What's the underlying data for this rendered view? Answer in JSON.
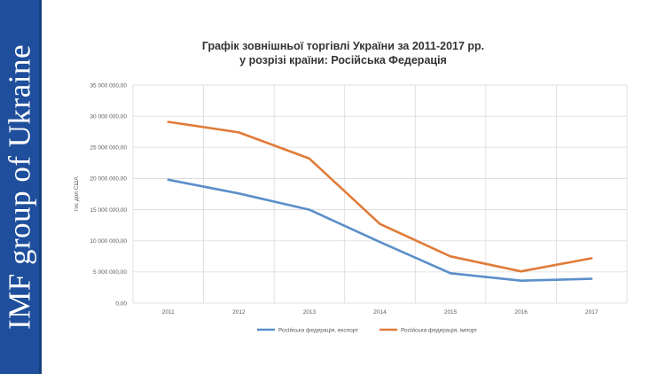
{
  "brand": {
    "text": "IMF group of Ukraine"
  },
  "colors": {
    "brand_bar": "#1f4f9c",
    "export_series": "#5b8fc9",
    "import_series": "#e07b39",
    "grid": "#d9d9d9"
  },
  "chart_data": {
    "type": "line",
    "title_lines": [
      "Графік зовнішньої торгівлі України за 2011-2017 рр.",
      "у розрізі країни: Російська Федерація"
    ],
    "xlabel": "",
    "ylabel": "тис дол США",
    "x": [
      "2011",
      "2012",
      "2013",
      "2014",
      "2015",
      "2016",
      "2017"
    ],
    "ylim": [
      0,
      35000000
    ],
    "yticks": [
      0,
      5000000,
      10000000,
      15000000,
      20000000,
      25000000,
      30000000,
      35000000
    ],
    "ytick_labels": [
      "0,00",
      "5 000 000,00",
      "10 000 000,00",
      "15 000 000,00",
      "20 000 000,00",
      "25 000 000,00",
      "30 000 000,00",
      "35 000 000,00"
    ],
    "grid": true,
    "legend_position": "bottom",
    "series": [
      {
        "name": "Російська федерація, експорт",
        "color": "#5b8fc9",
        "values": [
          19800000,
          17600000,
          15000000,
          9800000,
          4800000,
          3600000,
          3900000
        ]
      },
      {
        "name": "Російська федерація, імпорт",
        "color": "#e07b39",
        "values": [
          29100000,
          27400000,
          23200000,
          12700000,
          7500000,
          5100000,
          7200000
        ]
      }
    ]
  }
}
